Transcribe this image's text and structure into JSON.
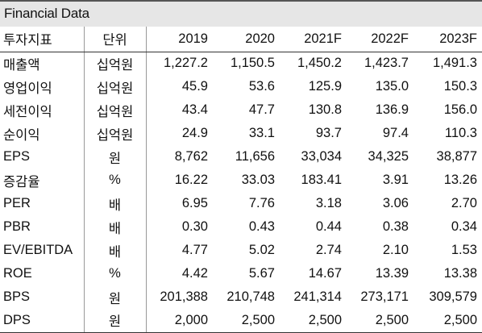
{
  "title": "Financial Data",
  "headers": [
    "투자지표",
    "단위",
    "2019",
    "2020",
    "2021F",
    "2022F",
    "2023F"
  ],
  "rows": [
    {
      "label": "매출액",
      "unit": "십억원",
      "values": [
        "1,227.2",
        "1,150.5",
        "1,450.2",
        "1,423.7",
        "1,491.3"
      ]
    },
    {
      "label": "영업이익",
      "unit": "십억원",
      "values": [
        "45.9",
        "53.6",
        "125.9",
        "135.0",
        "150.3"
      ]
    },
    {
      "label": "세전이익",
      "unit": "십억원",
      "values": [
        "43.4",
        "47.7",
        "130.8",
        "136.9",
        "156.0"
      ]
    },
    {
      "label": "순이익",
      "unit": "십억원",
      "values": [
        "24.9",
        "33.1",
        "93.7",
        "97.4",
        "110.3"
      ]
    },
    {
      "label": "EPS",
      "unit": "원",
      "values": [
        "8,762",
        "11,656",
        "33,034",
        "34,325",
        "38,877"
      ]
    },
    {
      "label": "증감율",
      "unit": "%",
      "values": [
        "16.22",
        "33.03",
        "183.41",
        "3.91",
        "13.26"
      ]
    },
    {
      "label": "PER",
      "unit": "배",
      "values": [
        "6.95",
        "7.76",
        "3.18",
        "3.06",
        "2.70"
      ]
    },
    {
      "label": "PBR",
      "unit": "배",
      "values": [
        "0.30",
        "0.43",
        "0.44",
        "0.38",
        "0.34"
      ]
    },
    {
      "label": "EV/EBITDA",
      "unit": "배",
      "values": [
        "4.77",
        "5.02",
        "2.74",
        "2.10",
        "1.53"
      ]
    },
    {
      "label": "ROE",
      "unit": "%",
      "values": [
        "4.42",
        "5.67",
        "14.67",
        "13.39",
        "13.38"
      ]
    },
    {
      "label": "BPS",
      "unit": "원",
      "values": [
        "201,388",
        "210,748",
        "241,314",
        "273,171",
        "309,579"
      ]
    },
    {
      "label": "DPS",
      "unit": "원",
      "values": [
        "2,000",
        "2,500",
        "2,500",
        "2,500",
        "2,500"
      ]
    }
  ]
}
